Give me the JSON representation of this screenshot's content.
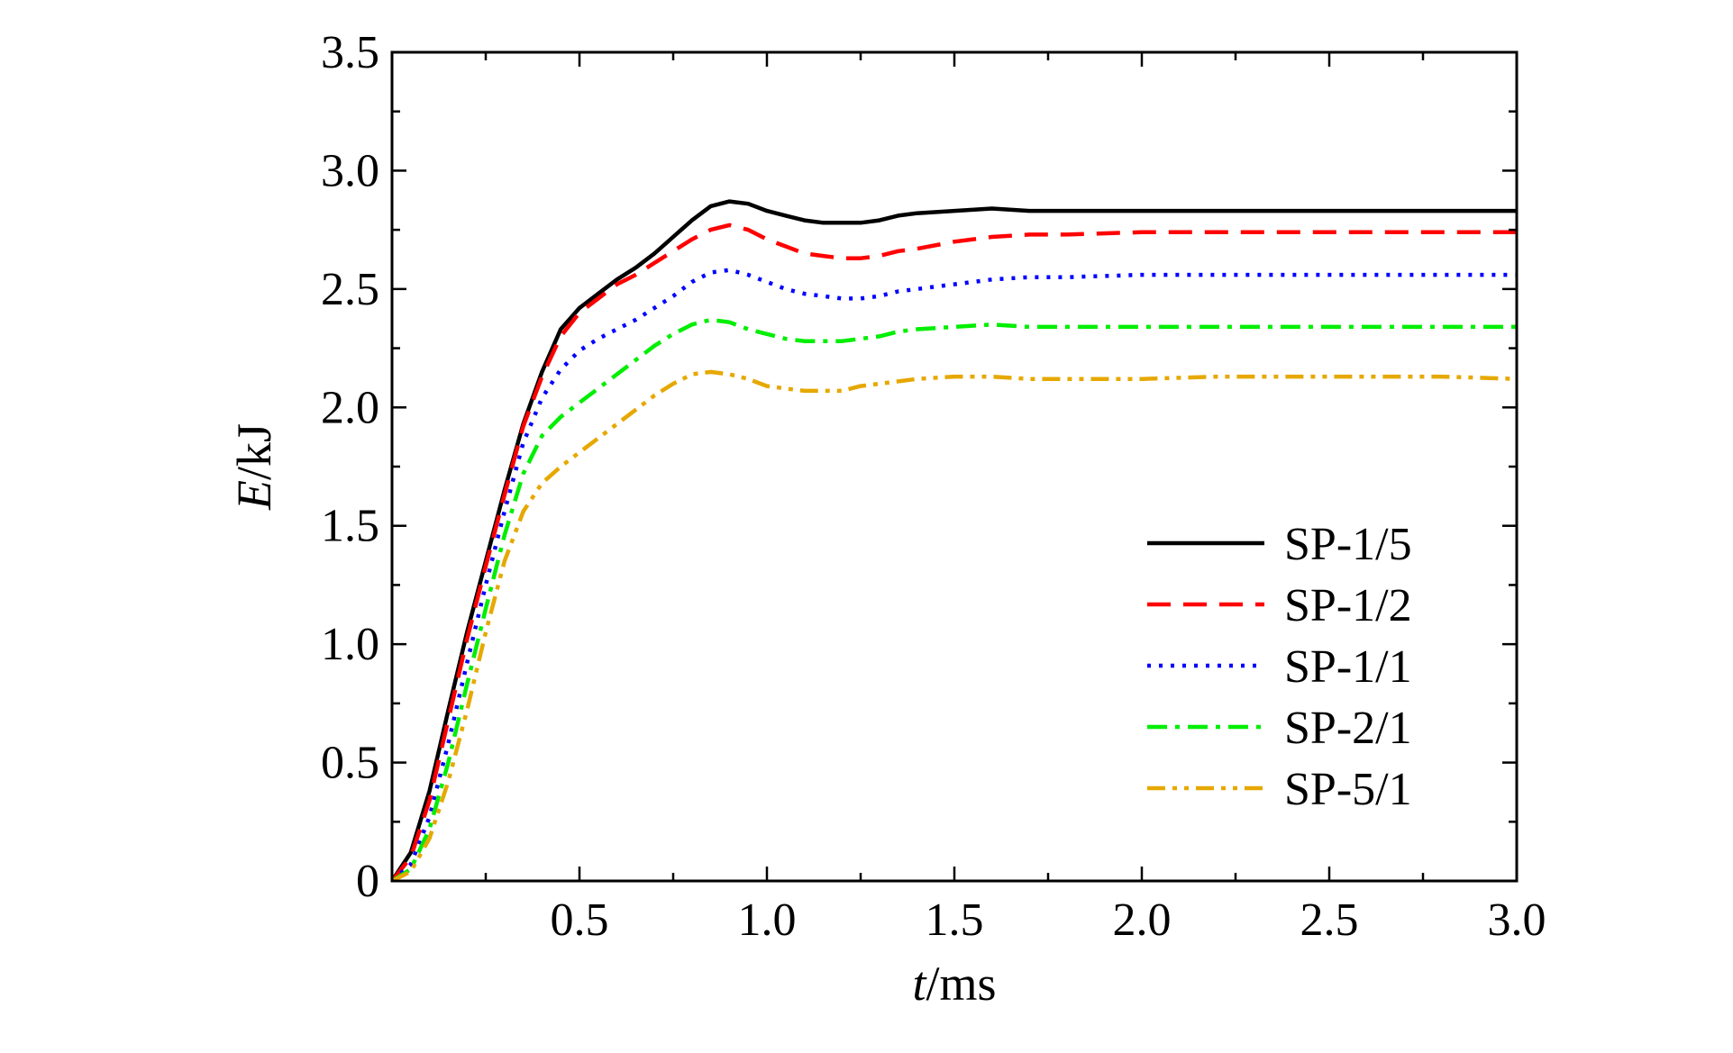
{
  "chart_data": {
    "type": "line",
    "xlabel": {
      "var": "t",
      "unit": "/ms"
    },
    "ylabel": {
      "var": "E",
      "unit": "/kJ"
    },
    "xlim": [
      0,
      3.0
    ],
    "ylim": [
      0,
      3.5
    ],
    "xticks": [
      {
        "value": 0.5,
        "label": "0.5"
      },
      {
        "value": 1.0,
        "label": "1.0"
      },
      {
        "value": 1.5,
        "label": "1.5"
      },
      {
        "value": 2.0,
        "label": "2.0"
      },
      {
        "value": 2.5,
        "label": "2.5"
      },
      {
        "value": 3.0,
        "label": "3.0"
      }
    ],
    "yticks": [
      {
        "value": 0,
        "label": "0"
      },
      {
        "value": 0.5,
        "label": "0.5"
      },
      {
        "value": 1.0,
        "label": "1.0"
      },
      {
        "value": 1.5,
        "label": "1.5"
      },
      {
        "value": 2.0,
        "label": "2.0"
      },
      {
        "value": 2.5,
        "label": "2.5"
      },
      {
        "value": 3.0,
        "label": "3.0"
      },
      {
        "value": 3.5,
        "label": "3.5"
      }
    ],
    "grid": false,
    "legend_position": "center-right",
    "series": [
      {
        "name": "SP-1/5",
        "color": "#000000",
        "dash": "solid",
        "x": [
          0,
          0.05,
          0.1,
          0.15,
          0.2,
          0.25,
          0.3,
          0.35,
          0.4,
          0.45,
          0.5,
          0.55,
          0.6,
          0.65,
          0.7,
          0.75,
          0.8,
          0.85,
          0.9,
          0.95,
          1.0,
          1.05,
          1.1,
          1.15,
          1.2,
          1.25,
          1.3,
          1.35,
          1.4,
          1.5,
          1.6,
          1.7,
          1.8,
          2.0,
          2.2,
          2.4,
          2.6,
          2.8,
          3.0
        ],
        "y": [
          0,
          0.12,
          0.38,
          0.72,
          1.05,
          1.35,
          1.65,
          1.93,
          2.15,
          2.33,
          2.42,
          2.48,
          2.54,
          2.59,
          2.65,
          2.72,
          2.79,
          2.85,
          2.87,
          2.86,
          2.83,
          2.81,
          2.79,
          2.78,
          2.78,
          2.78,
          2.79,
          2.81,
          2.82,
          2.83,
          2.84,
          2.83,
          2.83,
          2.83,
          2.83,
          2.83,
          2.83,
          2.83,
          2.83
        ]
      },
      {
        "name": "SP-1/2",
        "color": "#ff0000",
        "dash": "dashed",
        "x": [
          0,
          0.05,
          0.1,
          0.15,
          0.2,
          0.25,
          0.3,
          0.35,
          0.4,
          0.45,
          0.5,
          0.55,
          0.6,
          0.65,
          0.7,
          0.75,
          0.8,
          0.85,
          0.9,
          0.95,
          1.0,
          1.05,
          1.1,
          1.15,
          1.2,
          1.25,
          1.3,
          1.35,
          1.4,
          1.5,
          1.6,
          1.7,
          1.8,
          2.0,
          2.2,
          2.4,
          2.6,
          2.8,
          3.0
        ],
        "y": [
          0,
          0.1,
          0.34,
          0.68,
          1.02,
          1.33,
          1.63,
          1.92,
          2.13,
          2.3,
          2.4,
          2.46,
          2.52,
          2.56,
          2.61,
          2.66,
          2.71,
          2.75,
          2.77,
          2.75,
          2.71,
          2.68,
          2.65,
          2.64,
          2.63,
          2.63,
          2.64,
          2.66,
          2.67,
          2.7,
          2.72,
          2.73,
          2.73,
          2.74,
          2.74,
          2.74,
          2.74,
          2.74,
          2.74
        ]
      },
      {
        "name": "SP-1/1",
        "color": "#0000ff",
        "dash": "dotted",
        "x": [
          0,
          0.05,
          0.1,
          0.15,
          0.2,
          0.25,
          0.3,
          0.35,
          0.4,
          0.45,
          0.5,
          0.55,
          0.6,
          0.65,
          0.7,
          0.75,
          0.8,
          0.85,
          0.9,
          0.95,
          1.0,
          1.05,
          1.1,
          1.15,
          1.2,
          1.25,
          1.3,
          1.35,
          1.4,
          1.5,
          1.6,
          1.7,
          1.8,
          2.0,
          2.2,
          2.4,
          2.6,
          2.8,
          3.0
        ],
        "y": [
          0,
          0.07,
          0.27,
          0.58,
          0.92,
          1.25,
          1.56,
          1.85,
          2.04,
          2.16,
          2.24,
          2.29,
          2.33,
          2.37,
          2.42,
          2.47,
          2.53,
          2.57,
          2.58,
          2.56,
          2.53,
          2.5,
          2.48,
          2.47,
          2.46,
          2.46,
          2.47,
          2.49,
          2.5,
          2.52,
          2.54,
          2.55,
          2.55,
          2.56,
          2.56,
          2.56,
          2.56,
          2.56,
          2.56
        ]
      },
      {
        "name": "SP-2/1",
        "color": "#00ee00",
        "dash": "dashdot",
        "x": [
          0,
          0.05,
          0.1,
          0.15,
          0.2,
          0.25,
          0.3,
          0.35,
          0.4,
          0.45,
          0.5,
          0.55,
          0.6,
          0.65,
          0.7,
          0.75,
          0.8,
          0.85,
          0.9,
          0.95,
          1.0,
          1.05,
          1.1,
          1.15,
          1.2,
          1.25,
          1.3,
          1.35,
          1.4,
          1.5,
          1.6,
          1.7,
          1.8,
          2.0,
          2.2,
          2.4,
          2.6,
          2.8,
          3.0
        ],
        "y": [
          0,
          0.05,
          0.22,
          0.5,
          0.83,
          1.15,
          1.46,
          1.72,
          1.88,
          1.96,
          2.02,
          2.08,
          2.14,
          2.2,
          2.26,
          2.31,
          2.35,
          2.37,
          2.36,
          2.33,
          2.31,
          2.29,
          2.28,
          2.28,
          2.28,
          2.29,
          2.3,
          2.32,
          2.33,
          2.34,
          2.35,
          2.34,
          2.34,
          2.34,
          2.34,
          2.34,
          2.34,
          2.34,
          2.34
        ]
      },
      {
        "name": "SP-5/1",
        "color": "#e6a800",
        "dash": "dashdotdot",
        "x": [
          0,
          0.05,
          0.1,
          0.15,
          0.2,
          0.25,
          0.3,
          0.35,
          0.4,
          0.45,
          0.5,
          0.55,
          0.6,
          0.65,
          0.7,
          0.75,
          0.8,
          0.85,
          0.9,
          0.95,
          1.0,
          1.05,
          1.1,
          1.15,
          1.2,
          1.25,
          1.3,
          1.35,
          1.4,
          1.5,
          1.6,
          1.7,
          1.8,
          2.0,
          2.2,
          2.4,
          2.6,
          2.8,
          3.0
        ],
        "y": [
          0,
          0.04,
          0.18,
          0.42,
          0.72,
          1.05,
          1.35,
          1.56,
          1.68,
          1.75,
          1.81,
          1.87,
          1.93,
          1.99,
          2.05,
          2.1,
          2.14,
          2.15,
          2.14,
          2.12,
          2.09,
          2.08,
          2.07,
          2.07,
          2.07,
          2.09,
          2.1,
          2.11,
          2.12,
          2.13,
          2.13,
          2.12,
          2.12,
          2.12,
          2.13,
          2.13,
          2.13,
          2.13,
          2.12
        ]
      }
    ]
  }
}
